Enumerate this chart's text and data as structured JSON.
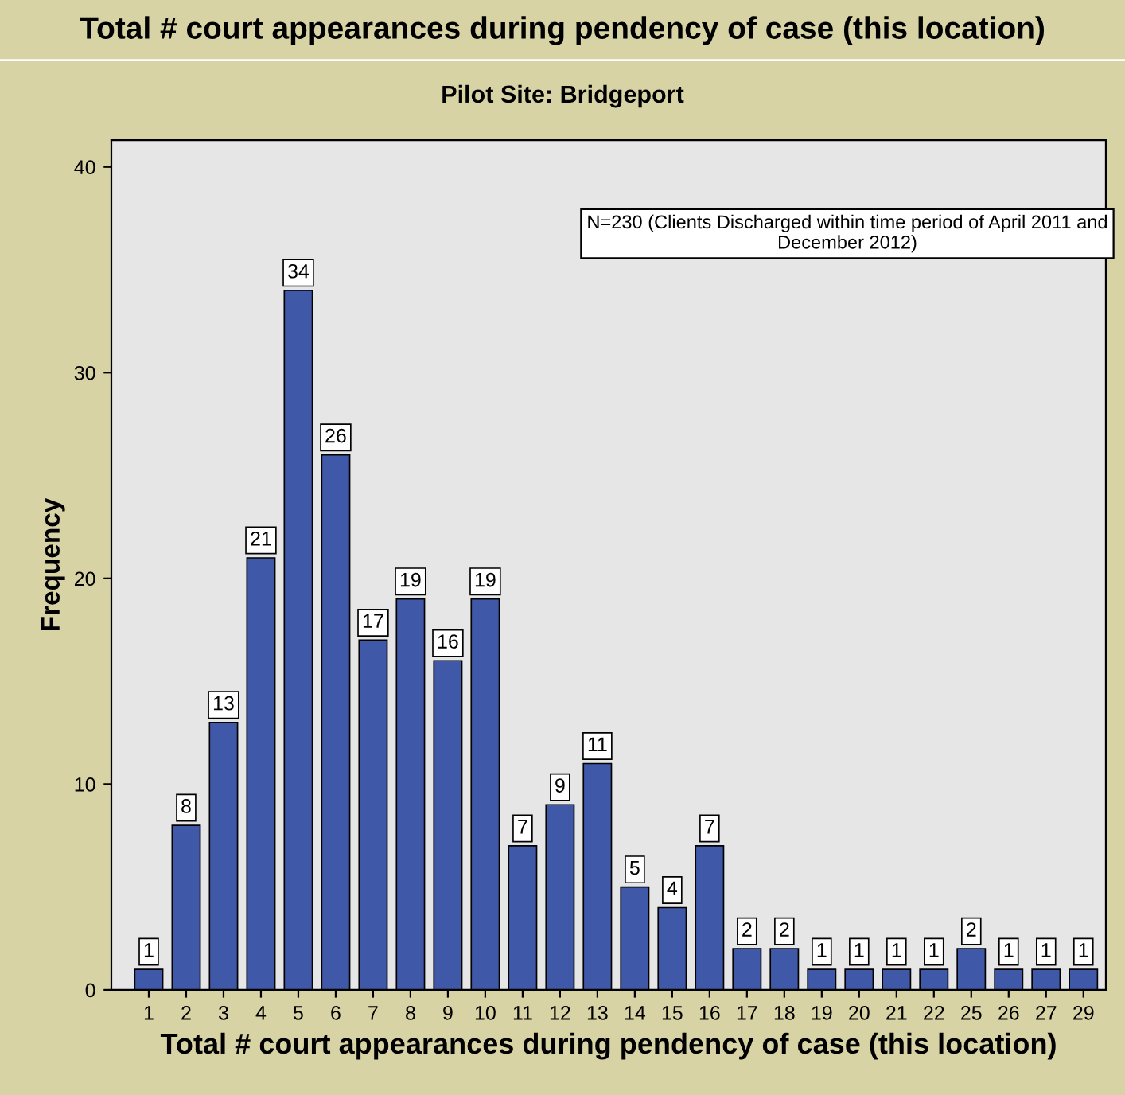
{
  "chart_data": {
    "type": "bar",
    "title": "Total # court appearances during pendency of case (this location)",
    "subtitle": "Pilot Site: Bridgeport",
    "xlabel": "Total # court appearances during pendency of case (this location)",
    "ylabel": "Frequency",
    "categories": [
      "1",
      "2",
      "3",
      "4",
      "5",
      "6",
      "7",
      "8",
      "9",
      "10",
      "11",
      "12",
      "13",
      "14",
      "15",
      "16",
      "17",
      "18",
      "19",
      "20",
      "21",
      "22",
      "25",
      "26",
      "27",
      "29"
    ],
    "values": [
      1,
      8,
      13,
      21,
      34,
      26,
      17,
      19,
      16,
      19,
      7,
      9,
      11,
      5,
      4,
      7,
      2,
      2,
      1,
      1,
      1,
      1,
      2,
      1,
      1,
      1
    ],
    "color": "#3f58a8",
    "ylim": [
      0,
      41.3
    ],
    "yticks": [
      0,
      10,
      20,
      30,
      40
    ],
    "grid": false,
    "data_labels": true,
    "annotations": [
      "N=230 (Clients Discharged within time period of April 2011 and\nDecember 2012)"
    ]
  }
}
